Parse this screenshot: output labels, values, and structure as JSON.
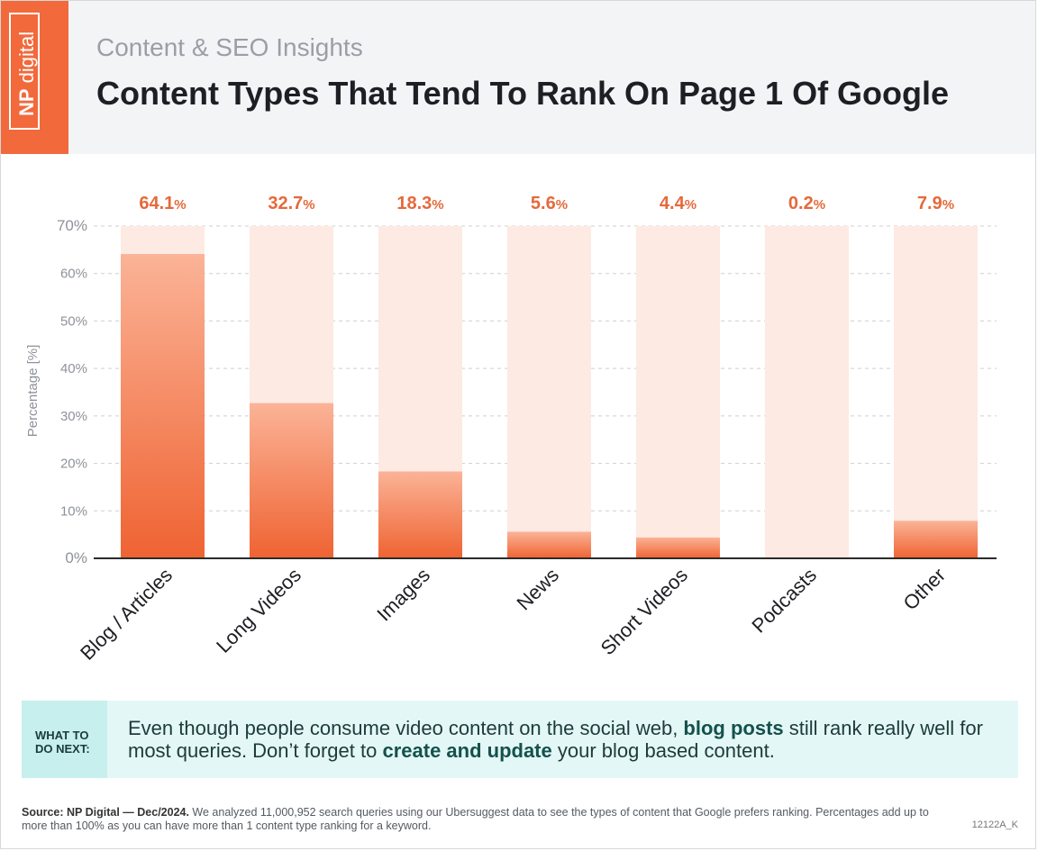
{
  "header": {
    "brand_np": "NP",
    "brand_digital": "digital",
    "subtitle": "Content & SEO Insights",
    "title": "Content Types That Tend To Rank On Page 1 Of Google"
  },
  "colors": {
    "bar_top": "#fbb397",
    "bar_bottom": "#ef6332",
    "bar_track": "#fdeae3",
    "value_label": "#e5693a",
    "brand": "#f2693c",
    "callout_bg": "#e3f7f6",
    "callout_label_bg": "#c6efed"
  },
  "chart_data": {
    "type": "bar",
    "categories": [
      "Blog / Articles",
      "Long Videos",
      "Images",
      "News",
      "Short Videos",
      "Podcasts",
      "Other"
    ],
    "values": [
      64.1,
      32.7,
      18.3,
      5.6,
      4.4,
      0.2,
      7.9
    ],
    "value_labels": [
      "64.1",
      "32.7",
      "18.3",
      "5.6",
      "4.4",
      "0.2",
      "7.9"
    ],
    "value_suffix": "%",
    "ylabel": "Percentage [%]",
    "ylim": [
      0,
      70
    ],
    "yticks": [
      0,
      10,
      20,
      30,
      40,
      50,
      60,
      70
    ],
    "ytick_labels": [
      "0%",
      "10%",
      "20%",
      "30%",
      "40%",
      "50%",
      "60%",
      "70%"
    ],
    "grid": true
  },
  "callout": {
    "label": "WHAT TO DO NEXT:",
    "text_1": "Even though people consume video content on the social web, ",
    "bold_1": "blog posts",
    "text_2": " still rank really well for most queries. Don’t forget to ",
    "bold_2": "create and update",
    "text_3": " your blog based content."
  },
  "footer": {
    "source_label": "Source:  NP Digital — Dec/2024.",
    "source_text": " We analyzed 11,000,952 search queries using our Ubersuggest data to see the types of content that Google prefers ranking. Percentages add up to more than 100% as you can have more than 1 content type ranking for a keyword.",
    "code": "12122A_K"
  }
}
